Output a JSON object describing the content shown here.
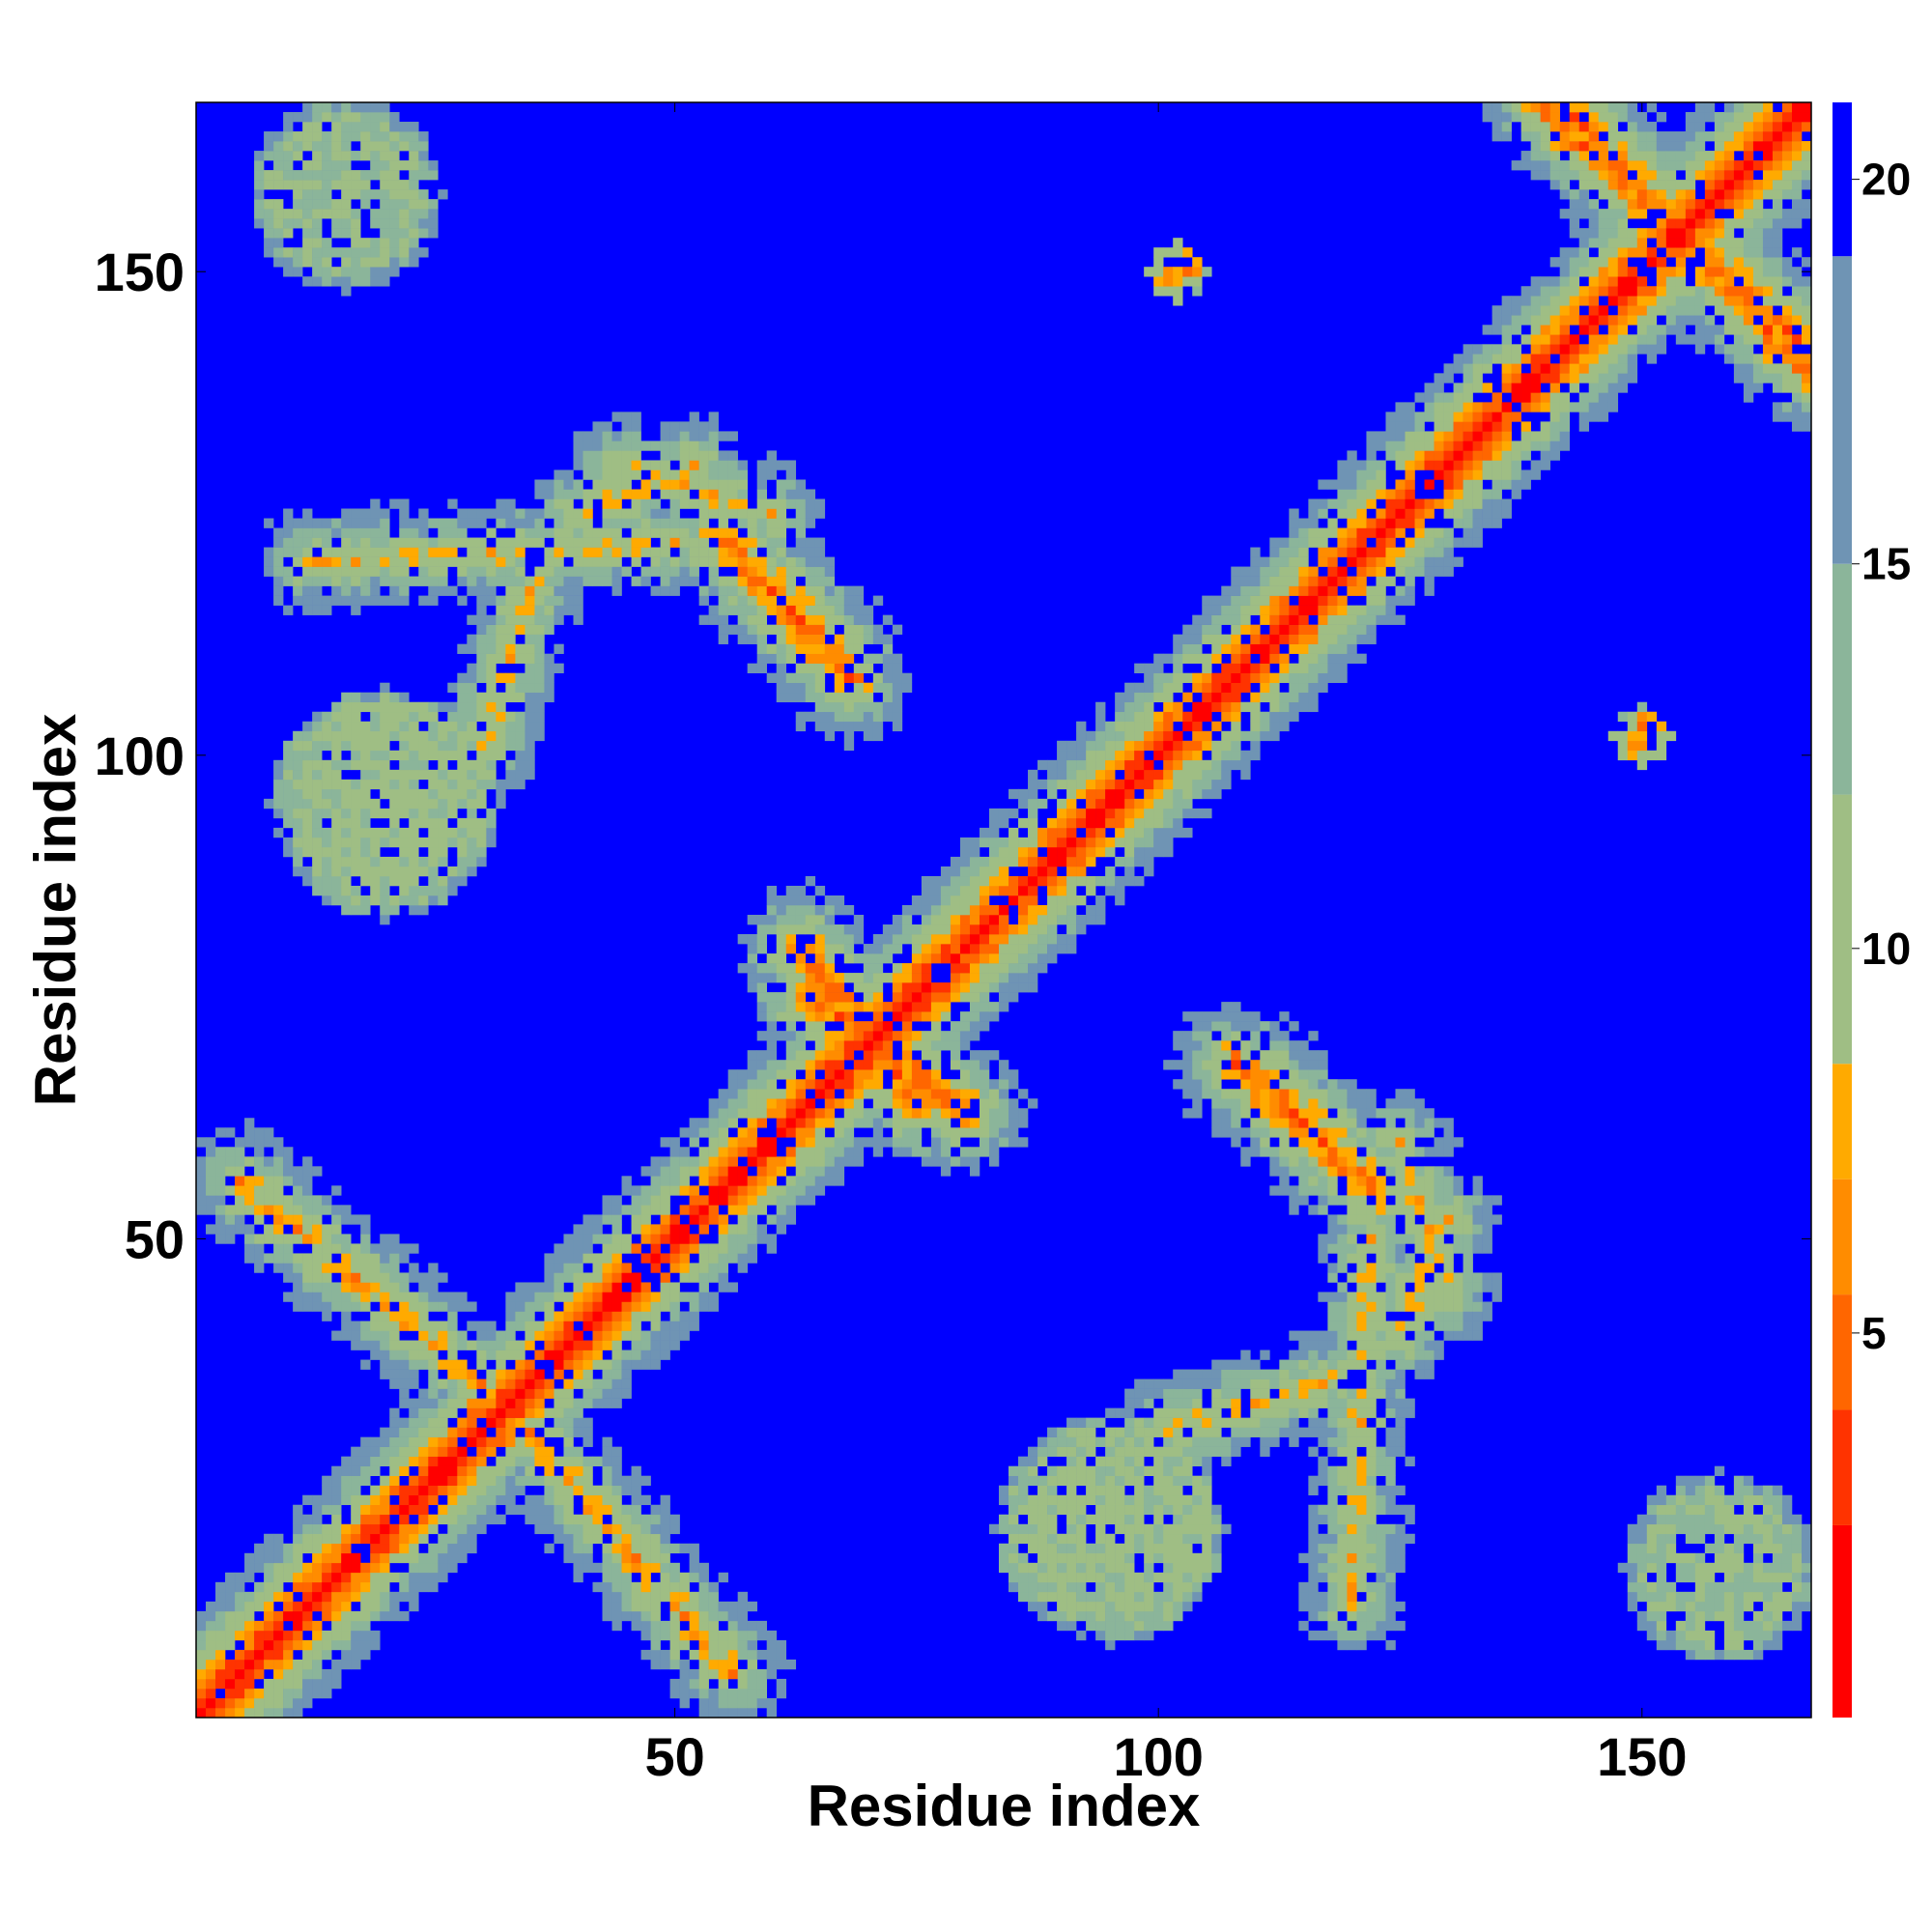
{
  "chart_data": {
    "type": "heatmap",
    "title": "",
    "xlabel": "Residue index",
    "ylabel": "Residue index",
    "xlim": [
      1,
      167
    ],
    "ylim": [
      1,
      167
    ],
    "x_ticks": [
      50,
      100,
      150
    ],
    "y_ticks": [
      50,
      100,
      150
    ],
    "x_tick_labels": [
      "50",
      "100",
      "150"
    ],
    "y_tick_labels": [
      "50",
      "100",
      "150"
    ],
    "colorbar": {
      "range": [
        0,
        21
      ],
      "ticks": [
        5,
        10,
        15,
        20
      ],
      "tick_labels": [
        "5",
        "10",
        "15",
        "20"
      ],
      "colors": [
        "#ff0000",
        "#ff3300",
        "#ff6600",
        "#ff8c00",
        "#ffaa00",
        "#9fbe84",
        "#8bb59a",
        "#6f94b4",
        "#0000ff"
      ],
      "bounds": [
        0,
        2.5,
        4,
        5.5,
        7,
        8.5,
        12,
        15,
        19,
        21
      ]
    },
    "matrix_description": "symmetric pairwise residue distance map (Angstrom scale 0-21); values >= 21 shown as background",
    "diagonal_band_width": 3,
    "contact_bands": [
      {
        "from": [
          63,
          80
        ],
        "to": [
          75,
          64
        ],
        "min_value": 5
      },
      {
        "from": [
          58,
          119
        ],
        "to": [
          68,
          108
        ],
        "min_value": 5
      },
      {
        "from": [
          110,
          67
        ],
        "to": [
          122,
          55
        ],
        "min_value": 5
      },
      {
        "from": [
          142,
          167
        ],
        "to": [
          167,
          140
        ],
        "min_value": 5
      },
      {
        "from": [
          7,
          54
        ],
        "to": [
          30,
          35
        ],
        "min_value": 7
      },
      {
        "from": [
          35,
          30
        ],
        "to": [
          56,
          5
        ],
        "min_value": 7
      },
      {
        "from": [
          12,
          120
        ],
        "to": [
          50,
          122
        ],
        "min_value": 8
      },
      {
        "from": [
          44,
          130
        ],
        "to": [
          60,
          125
        ],
        "min_value": 8
      },
      {
        "from": [
          100,
          30
        ],
        "to": [
          120,
          36
        ],
        "min_value": 8
      },
      {
        "from": [
          125,
          40
        ],
        "to": [
          130,
          52
        ],
        "min_value": 8
      }
    ],
    "contact_blobs": [
      {
        "center": [
          16,
          158
        ],
        "radius": 8,
        "min_value": 12
      },
      {
        "center": [
          155,
          13
        ],
        "radius": 8,
        "min_value": 12
      },
      {
        "center": [
          102,
          150
        ],
        "radius": 1,
        "min_value": 6
      },
      {
        "center": [
          149,
          102
        ],
        "radius": 1,
        "min_value": 6
      },
      {
        "center": [
          20,
          95
        ],
        "radius": 10,
        "min_value": 11
      },
      {
        "center": [
          95,
          20
        ],
        "radius": 10,
        "min_value": 11
      }
    ]
  }
}
